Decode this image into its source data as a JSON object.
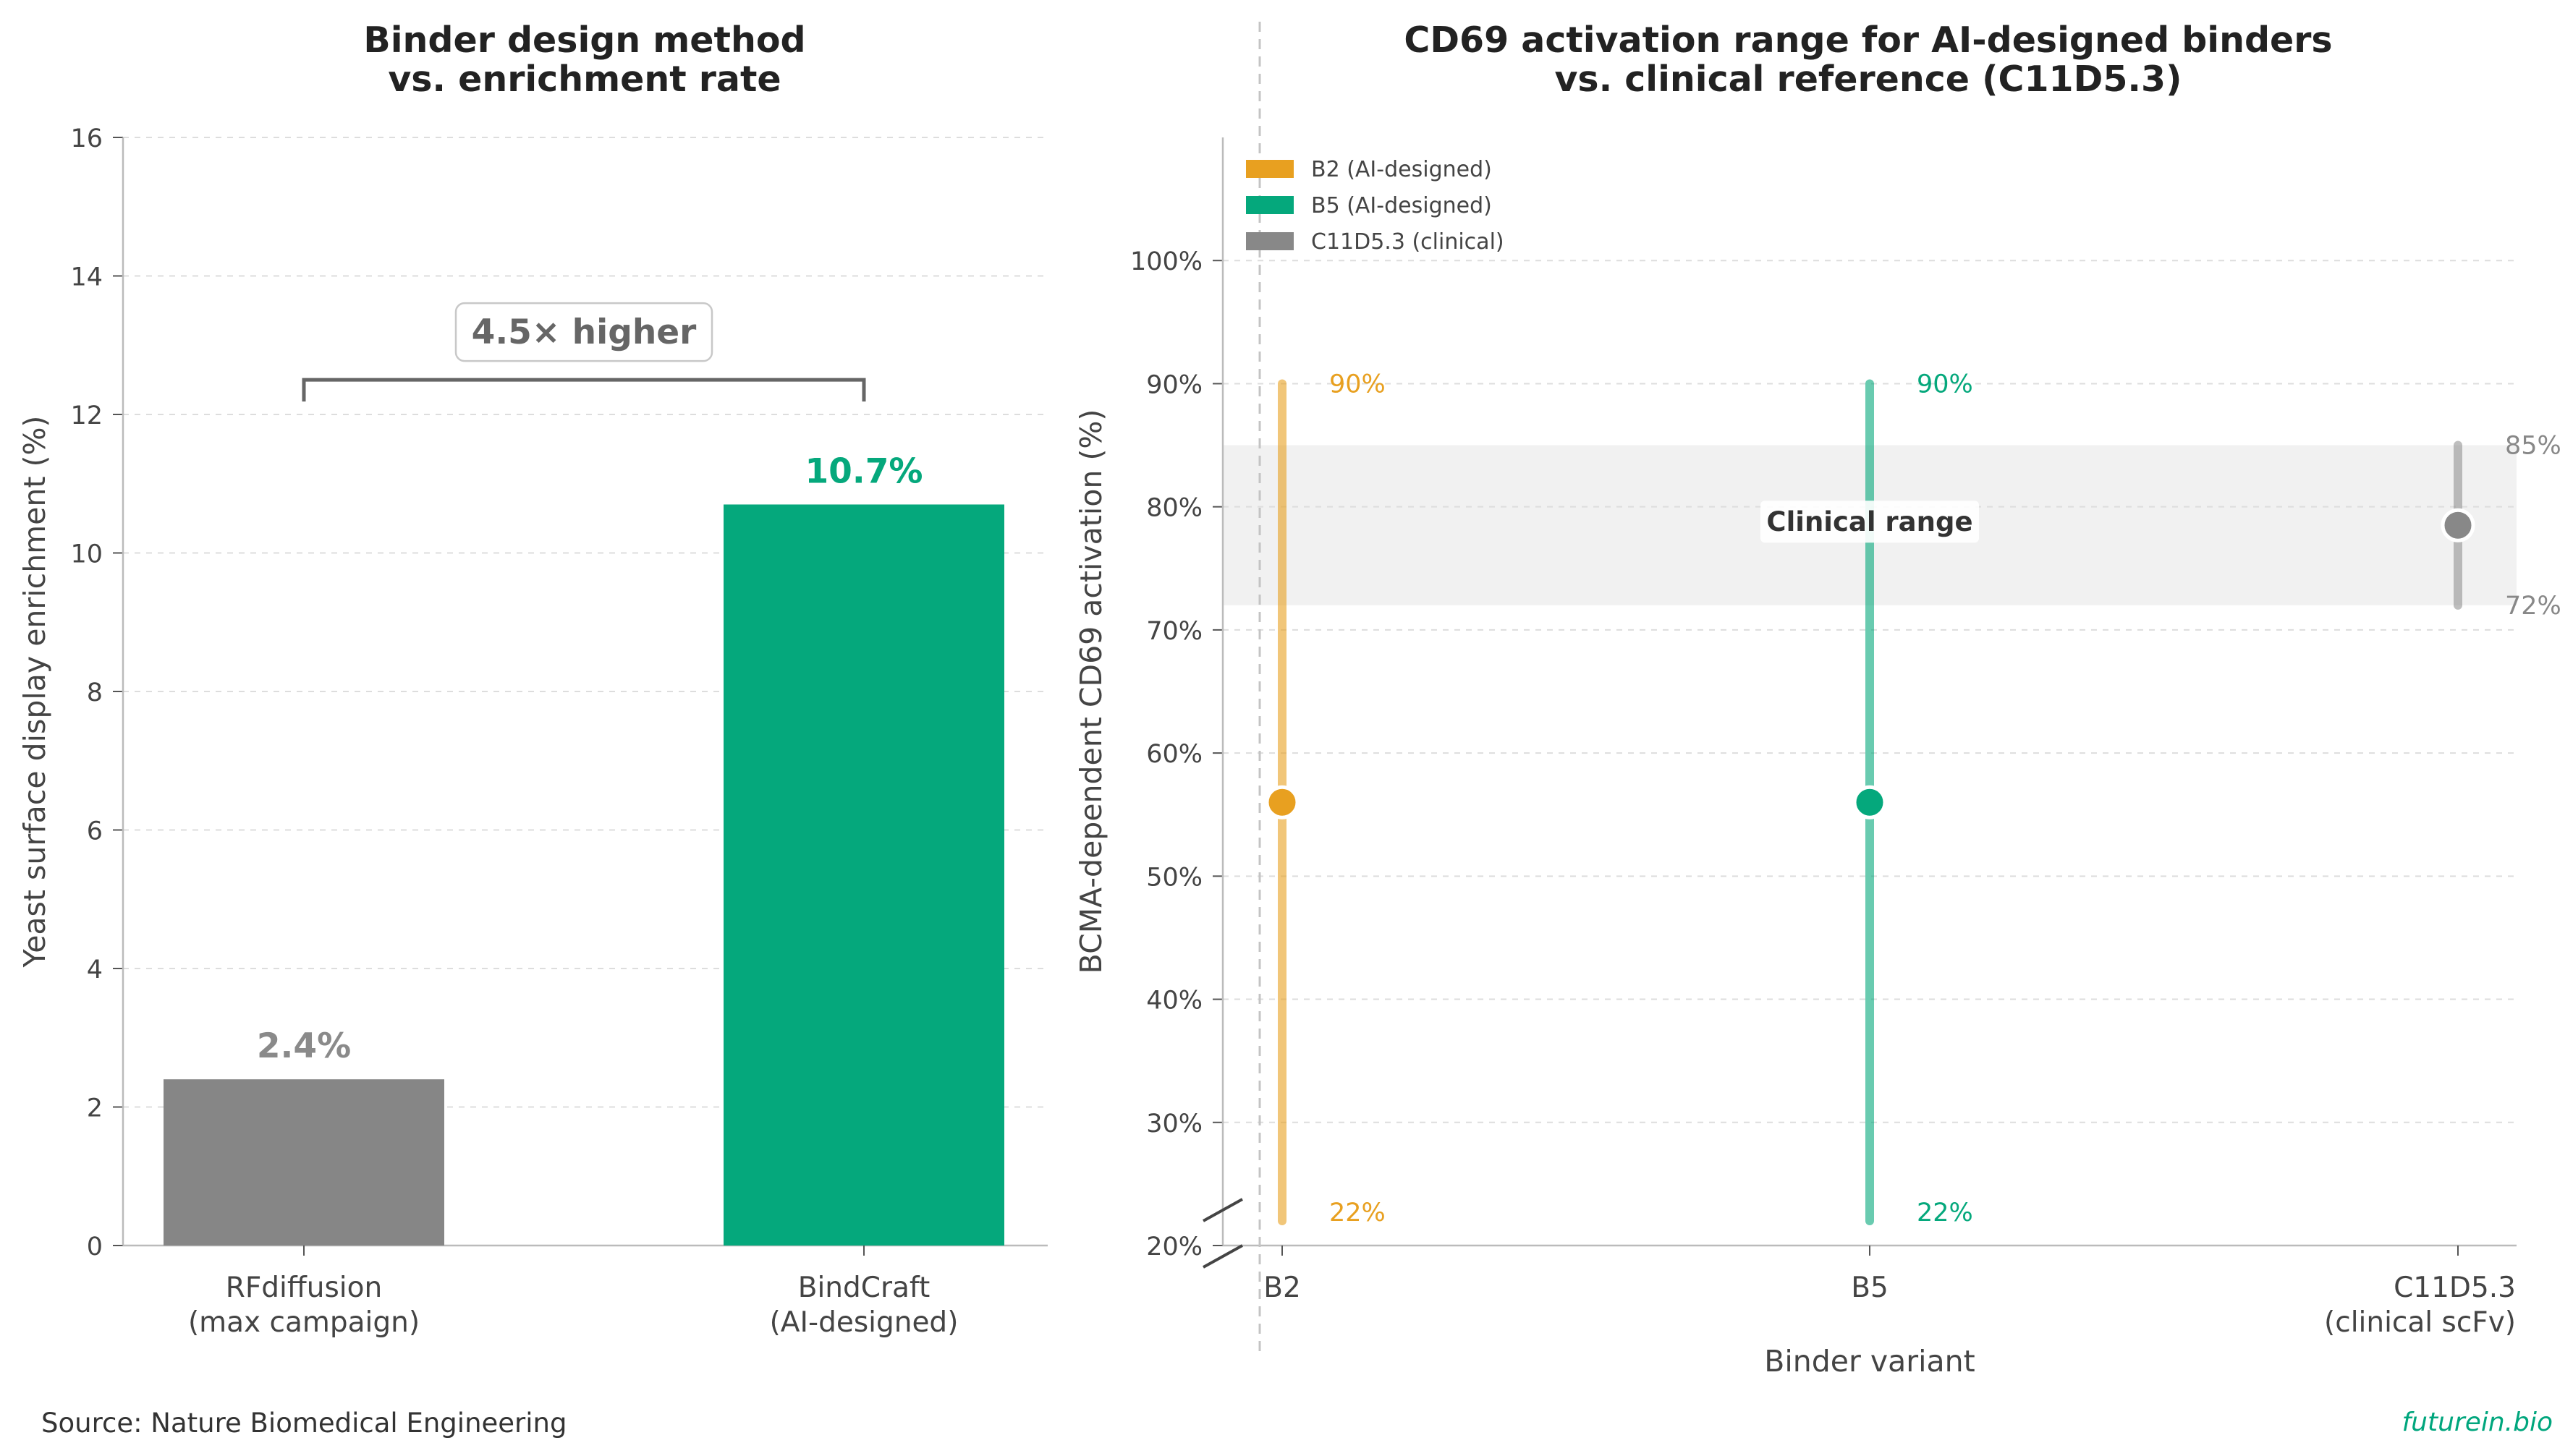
{
  "chart_data": [
    {
      "type": "bar",
      "title": [
        "Binder design method",
        "vs. enrichment rate"
      ],
      "ylabel": "Yeast surface display enrichment (%)",
      "categories": [
        [
          "RFdiffusion",
          "(max campaign)"
        ],
        [
          "BindCraft",
          "(AI-designed)"
        ]
      ],
      "values": [
        2.4,
        10.7
      ],
      "value_labels": [
        "2.4%",
        "10.7%"
      ],
      "colors": [
        "#868686",
        "#05a87c"
      ],
      "label_colors": [
        "#8a8a8a",
        "#05a87c"
      ],
      "ylim": [
        0,
        16
      ],
      "yticks": [
        0,
        2,
        4,
        6,
        8,
        10,
        12,
        14,
        16
      ],
      "grid": true,
      "annotation": {
        "text": "4.5× higher",
        "level": 12.5
      }
    },
    {
      "type": "range",
      "title": [
        "CD69 activation range for AI-designed binders",
        "vs. clinical reference (C11D5.3)"
      ],
      "xlabel": "Binder variant",
      "ylabel": "BCMA-dependent CD69 activation (%)",
      "categories": [
        [
          "B2"
        ],
        [
          "B5"
        ],
        [
          "C11D5.3",
          "(clinical scFv)"
        ]
      ],
      "series": [
        {
          "name": "B2 (AI-designed)",
          "low": 22,
          "high": 90,
          "point": 56,
          "low_label": "22%",
          "high_label": "90%",
          "color": "#e8a020"
        },
        {
          "name": "B5 (AI-designed)",
          "low": 22,
          "high": 90,
          "point": 56,
          "low_label": "22%",
          "high_label": "90%",
          "color": "#05a87c"
        },
        {
          "name": "C11D5.3 (clinical)",
          "low": 72,
          "high": 85,
          "point": 78.5,
          "low_label": "72%",
          "high_label": "85%",
          "color": "#888888"
        }
      ],
      "band": {
        "low": 72,
        "high": 85,
        "label": "Clinical range"
      },
      "ylim": [
        20,
        110
      ],
      "yticks": [
        20,
        30,
        40,
        50,
        60,
        70,
        80,
        90,
        100
      ],
      "ytick_labels": [
        "20%",
        "30%",
        "40%",
        "50%",
        "60%",
        "70%",
        "80%",
        "90%",
        "100%"
      ],
      "grid": true,
      "legend": "top-left"
    }
  ],
  "footer": {
    "source": "Source: Nature Biomedical Engineering",
    "brand": "futurein.bio"
  }
}
